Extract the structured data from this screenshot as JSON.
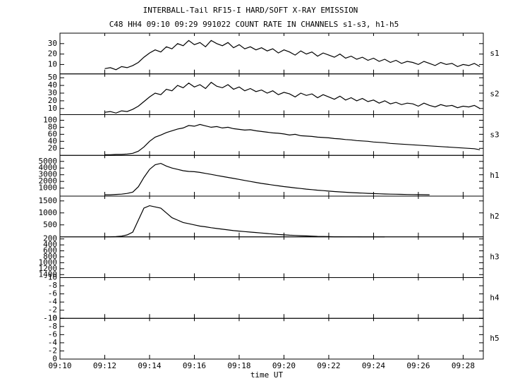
{
  "header": {
    "title": "INTERBALL-Tail RF15-I HARD/SOFT X-RAY EMISSION",
    "subtitle": "C48 HH4 09:10 09:29 991022  COUNT RATE IN CHANNELS s1-s3, h1-h5"
  },
  "x_axis": {
    "label": "time UT",
    "xlim": [
      10,
      28.9
    ],
    "xticks": [
      {
        "value": 10,
        "label": "09:10"
      },
      {
        "value": 12,
        "label": "09:12"
      },
      {
        "value": 14,
        "label": "09:14"
      },
      {
        "value": 16,
        "label": "09:16"
      },
      {
        "value": 18,
        "label": "09:18"
      },
      {
        "value": 20,
        "label": "09:20"
      },
      {
        "value": 22,
        "label": "09:22"
      },
      {
        "value": 24,
        "label": "09:24"
      },
      {
        "value": 26,
        "label": "09:26"
      },
      {
        "value": 28,
        "label": "09:28"
      }
    ]
  },
  "x": [
    12,
    12.25,
    12.5,
    12.75,
    13,
    13.25,
    13.5,
    13.75,
    14,
    14.25,
    14.5,
    14.75,
    15,
    15.25,
    15.5,
    15.75,
    16,
    16.25,
    16.5,
    16.75,
    17,
    17.25,
    17.5,
    17.75,
    18,
    18.25,
    18.5,
    18.75,
    19,
    19.25,
    19.5,
    19.75,
    20,
    20.25,
    20.5,
    20.75,
    21,
    21.25,
    21.5,
    21.75,
    22,
    22.25,
    22.5,
    22.75,
    23,
    23.25,
    23.5,
    23.75,
    24,
    24.25,
    24.5,
    24.75,
    25,
    25.25,
    25.5,
    25.75,
    26,
    26.25,
    26.5,
    26.75,
    27,
    27.25,
    27.5,
    27.75,
    28,
    28.25,
    28.5,
    28.75
  ],
  "chart_data": [
    {
      "type": "line",
      "label": "s1",
      "ylim": [
        1,
        40
      ],
      "yticks": [
        10,
        20,
        30
      ],
      "series": [
        {
          "color": "#000000",
          "values": [
            6,
            7,
            5,
            8,
            7,
            9,
            12,
            17,
            21,
            24,
            22,
            27,
            25,
            30,
            28,
            33,
            29,
            31,
            27,
            33,
            30,
            28,
            31,
            26,
            29,
            25,
            27,
            24,
            26,
            23,
            25,
            21,
            24,
            22,
            19,
            23,
            20,
            22,
            18,
            21,
            19,
            17,
            20,
            16,
            18,
            15,
            17,
            14,
            16,
            13,
            15,
            12,
            14,
            11,
            13,
            12,
            10,
            13,
            11,
            9,
            12,
            10,
            11,
            8,
            10,
            9,
            11,
            8
          ]
        }
      ]
    },
    {
      "type": "line",
      "label": "s2",
      "ylim": [
        2,
        55
      ],
      "yticks": [
        10,
        20,
        30,
        40,
        50
      ],
      "series": [
        {
          "color": "#000000",
          "values": [
            5,
            6,
            4,
            7,
            6,
            9,
            13,
            19,
            25,
            30,
            28,
            35,
            33,
            40,
            37,
            43,
            38,
            41,
            36,
            44,
            39,
            37,
            41,
            35,
            38,
            33,
            36,
            32,
            34,
            30,
            33,
            28,
            31,
            29,
            25,
            30,
            27,
            29,
            24,
            28,
            25,
            22,
            26,
            21,
            24,
            20,
            23,
            19,
            21,
            17,
            20,
            16,
            18,
            15,
            17,
            16,
            13,
            17,
            14,
            12,
            15,
            13,
            14,
            11,
            13,
            12,
            14,
            10
          ]
        }
      ]
    },
    {
      "type": "line",
      "label": "s3",
      "ylim": [
        0,
        116
      ],
      "yticks": [
        20,
        40,
        60,
        80,
        100
      ],
      "series": [
        {
          "color": "#000000",
          "values": [
            2,
            2,
            3,
            3,
            4,
            6,
            12,
            24,
            40,
            52,
            58,
            65,
            70,
            75,
            78,
            85,
            83,
            88,
            84,
            80,
            82,
            78,
            80,
            76,
            74,
            72,
            73,
            70,
            68,
            66,
            64,
            63,
            61,
            58,
            60,
            56,
            55,
            54,
            52,
            51,
            50,
            48,
            47,
            45,
            44,
            42,
            41,
            40,
            38,
            37,
            36,
            34,
            33,
            32,
            31,
            30,
            29,
            28,
            27,
            26,
            25,
            24,
            23,
            22,
            21,
            20,
            19,
            16
          ]
        }
      ]
    },
    {
      "type": "line",
      "label": "h1",
      "ylim": [
        -200,
        5900
      ],
      "yticks": [
        1000,
        2000,
        3000,
        4000,
        5000
      ],
      "series": [
        {
          "color": "#000000",
          "values": [
            0,
            0,
            50,
            100,
            200,
            400,
            1200,
            2600,
            3800,
            4500,
            4700,
            4300,
            4000,
            3800,
            3600,
            3500,
            3450,
            3350,
            3200,
            3050,
            2900,
            2750,
            2600,
            2450,
            2300,
            2150,
            2000,
            1850,
            1700,
            1580,
            1460,
            1340,
            1230,
            1130,
            1030,
            940,
            850,
            770,
            690,
            620,
            550,
            490,
            430,
            380,
            330,
            290,
            250,
            210,
            180,
            150,
            120,
            100,
            80,
            60,
            45,
            30,
            20,
            10,
            5,
            null,
            null,
            null,
            null,
            null,
            null,
            null,
            null,
            null
          ]
        }
      ]
    },
    {
      "type": "line",
      "label": "h2",
      "ylim": [
        0,
        1700
      ],
      "yticks": [
        500,
        1000,
        1500
      ],
      "series": [
        {
          "color": "#000000",
          "values": [
            0,
            5,
            10,
            30,
            80,
            200,
            700,
            1200,
            1300,
            1250,
            1200,
            1000,
            800,
            700,
            600,
            550,
            500,
            450,
            420,
            380,
            350,
            320,
            290,
            260,
            240,
            220,
            200,
            180,
            160,
            140,
            120,
            100,
            85,
            70,
            60,
            50,
            40,
            30,
            20,
            15,
            10,
            5,
            3,
            2,
            1,
            1,
            0,
            0,
            0,
            0,
            0,
            null,
            null,
            null,
            null,
            null,
            null,
            null,
            null,
            null,
            null,
            null,
            null,
            null,
            null,
            null,
            null,
            null
          ]
        }
      ]
    },
    {
      "type": "line",
      "label": "h3",
      "ylim": [
        1500,
        130
      ],
      "yticks": [
        200,
        400,
        600,
        800,
        1000,
        1200,
        1400
      ],
      "series": []
    },
    {
      "type": "line",
      "label": "h4",
      "ylim": [
        0,
        -10
      ],
      "yticks": [
        0,
        -2,
        -4,
        -6,
        -8,
        -10
      ],
      "series": []
    },
    {
      "type": "line",
      "label": "h5",
      "ylim": [
        0,
        -10
      ],
      "yticks": [
        0,
        -2,
        -4,
        -6,
        -8,
        -10
      ],
      "series": []
    }
  ]
}
